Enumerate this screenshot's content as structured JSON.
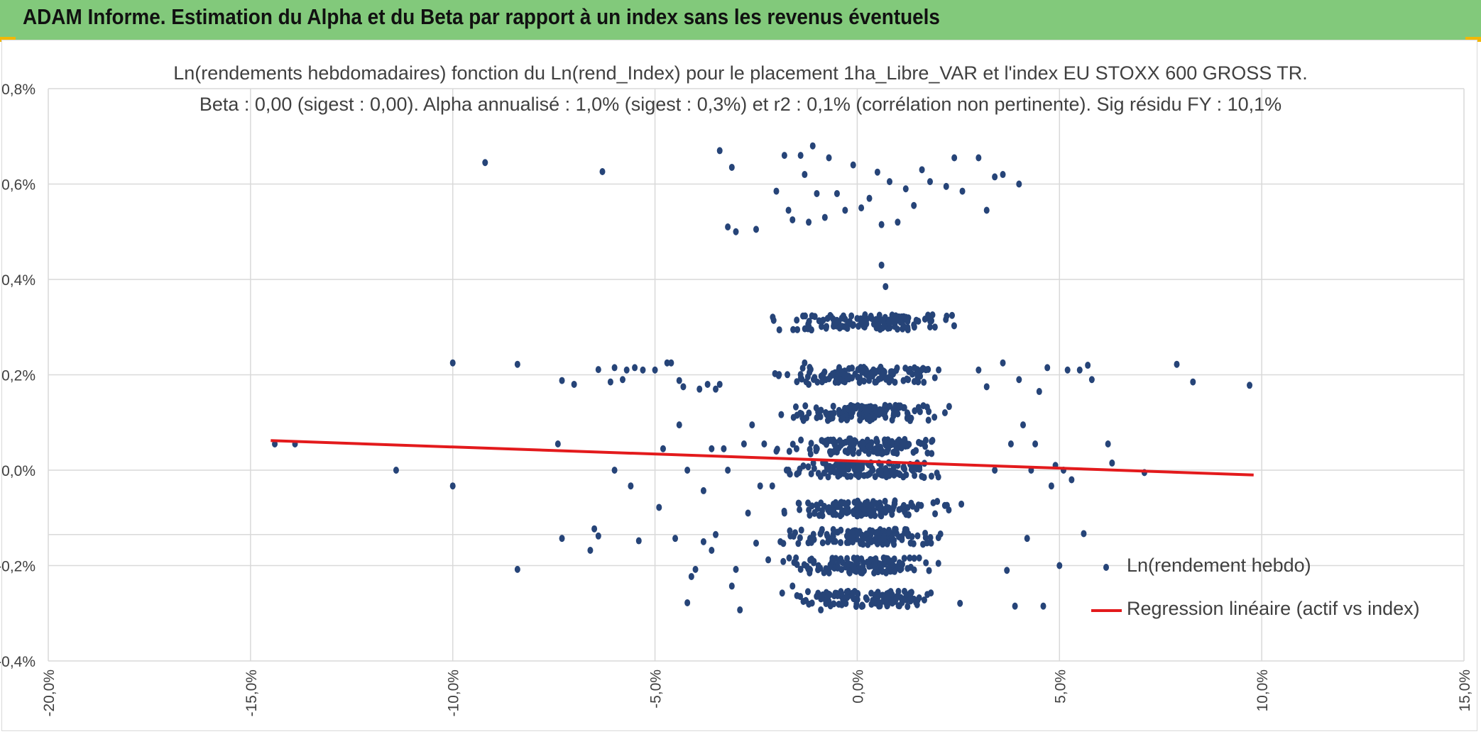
{
  "header": {
    "title": "ADAM Informe. Estimation du Alpha et du Beta par rapport à un index sans les revenus éventuels"
  },
  "colors": {
    "banner": "#82c97b",
    "accent": "#f2b705",
    "points": "#264478",
    "regression": "#e31a1c",
    "grid": "#d9d9d9",
    "text": "#404040"
  },
  "chart_data": {
    "type": "scatter",
    "title_line1": "Ln(rendements hebdomadaires) fonction du Ln(rend_Index) pour le placement 1ha_Libre_VAR et l'index EU STOXX 600 GROSS TR.",
    "title_line2": "Beta : 0,00 (sigest : 0,00). Alpha annualisé : 1,0% (sigest : 0,3%) et r2 : 0,1% (corrélation non pertinente). Sig résidu FY : 10,1%",
    "xlim": [
      -0.2,
      0.15
    ],
    "ylim": [
      -0.004,
      0.008
    ],
    "x_ticks": [
      -0.2,
      -0.15,
      -0.1,
      -0.05,
      0.0,
      0.05,
      0.1,
      0.15
    ],
    "x_tick_labels": [
      "-20,0%",
      "-15,0%",
      "-10,0%",
      "-5,0%",
      "0,0%",
      "5,0%",
      "10,0%",
      "15,0%"
    ],
    "y_ticks": [
      -0.004,
      -0.002,
      0.0,
      0.002,
      0.004,
      0.006,
      0.008
    ],
    "y_tick_labels": [
      "-0,4%",
      "-0,2%",
      "0,0%",
      "0,2%",
      "0,4%",
      "0,6%",
      "0,8%"
    ],
    "grid": true,
    "legend_position": "right",
    "series": [
      {
        "name": "Ln(rendement hebdo)",
        "kind": "scatter",
        "color": "#264478",
        "points": [
          [
            -0.144,
            0.00055
          ],
          [
            -0.139,
            0.00055
          ],
          [
            -0.114,
            0.0
          ],
          [
            -0.1,
            0.00225
          ],
          [
            -0.1,
            -0.00033
          ],
          [
            -0.092,
            0.00645
          ],
          [
            -0.084,
            0.00222
          ],
          [
            -0.084,
            -0.00208
          ],
          [
            -0.074,
            0.00055
          ],
          [
            -0.073,
            0.00188
          ],
          [
            -0.073,
            -0.00143
          ],
          [
            -0.07,
            0.0018
          ],
          [
            -0.066,
            -0.00168
          ],
          [
            -0.065,
            -0.00123
          ],
          [
            -0.064,
            0.00211
          ],
          [
            -0.064,
            -0.00138
          ],
          [
            -0.063,
            0.00626
          ],
          [
            -0.061,
            0.00185
          ],
          [
            -0.06,
            0.00215
          ],
          [
            -0.06,
            0.0
          ],
          [
            -0.058,
            0.0019
          ],
          [
            -0.057,
            0.0021
          ],
          [
            -0.056,
            -0.00033
          ],
          [
            -0.055,
            0.00215
          ],
          [
            -0.054,
            -0.00148
          ],
          [
            -0.053,
            0.0021
          ],
          [
            -0.05,
            0.0021
          ],
          [
            -0.049,
            -0.00078
          ],
          [
            -0.048,
            0.00045
          ],
          [
            -0.047,
            0.00225
          ],
          [
            -0.046,
            0.00225
          ],
          [
            -0.045,
            -0.00143
          ],
          [
            -0.044,
            0.00188
          ],
          [
            -0.044,
            0.00095
          ],
          [
            -0.043,
            0.00175
          ],
          [
            -0.042,
            0.0
          ],
          [
            -0.042,
            -0.00278
          ],
          [
            -0.041,
            -0.00223
          ],
          [
            -0.04,
            -0.00208
          ],
          [
            -0.039,
            0.0017
          ],
          [
            -0.038,
            -0.0015
          ],
          [
            -0.038,
            -0.00043
          ],
          [
            -0.037,
            0.0018
          ],
          [
            -0.036,
            0.00045
          ],
          [
            -0.036,
            -0.00168
          ],
          [
            -0.035,
            0.0017
          ],
          [
            -0.035,
            -0.00135
          ],
          [
            -0.034,
            0.0018
          ],
          [
            -0.033,
            0.00045
          ],
          [
            -0.032,
            0.0
          ],
          [
            -0.031,
            -0.00243
          ],
          [
            -0.03,
            -0.00208
          ],
          [
            -0.029,
            -0.00293
          ],
          [
            -0.028,
            0.00055
          ],
          [
            -0.027,
            -0.0009
          ],
          [
            -0.026,
            0.00095
          ],
          [
            -0.025,
            -0.00153
          ],
          [
            -0.024,
            -0.00033
          ],
          [
            -0.023,
            0.00055
          ],
          [
            -0.022,
            -0.00188
          ],
          [
            -0.021,
            -0.00033
          ],
          [
            -0.02,
            0.0004
          ],
          [
            -0.019,
            -0.0015
          ],
          [
            -0.018,
            -0.0009
          ],
          [
            -0.017,
            0.0
          ],
          [
            -0.016,
            -0.00243
          ],
          [
            -0.015,
            0.00045
          ],
          [
            -0.014,
            -0.00208
          ],
          [
            -0.013,
            0.00225
          ],
          [
            -0.012,
            0.0018
          ],
          [
            -0.011,
            -0.00143
          ],
          [
            -0.01,
            0.0011
          ],
          [
            -0.009,
            -0.00293
          ],
          [
            -0.034,
            0.0067
          ],
          [
            -0.032,
            0.0051
          ],
          [
            -0.031,
            0.00635
          ],
          [
            -0.03,
            0.005
          ],
          [
            -0.025,
            0.00505
          ],
          [
            -0.02,
            0.00585
          ],
          [
            -0.018,
            0.0066
          ],
          [
            -0.017,
            0.00545
          ],
          [
            -0.016,
            0.00525
          ],
          [
            -0.014,
            0.0066
          ],
          [
            -0.013,
            0.0062
          ],
          [
            -0.012,
            0.0052
          ],
          [
            -0.011,
            0.0068
          ],
          [
            -0.01,
            0.0058
          ],
          [
            -0.008,
            0.0053
          ],
          [
            -0.007,
            0.00655
          ],
          [
            -0.005,
            0.0058
          ],
          [
            -0.003,
            0.00545
          ],
          [
            -0.001,
            0.0064
          ],
          [
            0.001,
            0.0055
          ],
          [
            0.003,
            0.0057
          ],
          [
            0.005,
            0.00625
          ],
          [
            0.006,
            0.00515
          ],
          [
            0.008,
            0.00605
          ],
          [
            0.01,
            0.0052
          ],
          [
            0.012,
            0.0059
          ],
          [
            0.014,
            0.00555
          ],
          [
            0.016,
            0.0063
          ],
          [
            0.018,
            0.00605
          ],
          [
            0.022,
            0.00595
          ],
          [
            0.024,
            0.00655
          ],
          [
            0.026,
            0.00585
          ],
          [
            0.03,
            0.00655
          ],
          [
            0.032,
            0.00545
          ],
          [
            0.034,
            0.00615
          ],
          [
            0.036,
            0.0062
          ],
          [
            0.04,
            0.006
          ],
          [
            0.006,
            0.0043
          ],
          [
            0.007,
            0.00385
          ],
          [
            0.03,
            0.0021
          ],
          [
            0.032,
            0.00175
          ],
          [
            0.034,
            0.0
          ],
          [
            0.036,
            0.00225
          ],
          [
            0.037,
            -0.0021
          ],
          [
            0.038,
            0.00055
          ],
          [
            0.039,
            -0.00285
          ],
          [
            0.04,
            0.0019
          ],
          [
            0.041,
            0.00095
          ],
          [
            0.042,
            -0.00143
          ],
          [
            0.043,
            0.0
          ],
          [
            0.044,
            0.00055
          ],
          [
            0.045,
            0.00165
          ],
          [
            0.046,
            -0.00285
          ],
          [
            0.047,
            0.00215
          ],
          [
            0.048,
            -0.00033
          ],
          [
            0.049,
            0.0001
          ],
          [
            0.05,
            -0.002
          ],
          [
            0.051,
            0.0
          ],
          [
            0.052,
            0.0021
          ],
          [
            0.053,
            -0.0002
          ],
          [
            0.055,
            0.0021
          ],
          [
            0.056,
            -0.00133
          ],
          [
            0.057,
            0.0022
          ],
          [
            0.058,
            0.0019
          ],
          [
            0.062,
            0.00055
          ],
          [
            0.063,
            0.00015
          ],
          [
            0.071,
            -5e-05
          ],
          [
            0.079,
            0.00222
          ],
          [
            0.083,
            0.00185
          ],
          [
            0.097,
            0.00178
          ]
        ],
        "dense_clusters": [
          {
            "x_center": 0.002,
            "x_spread": 0.026,
            "bands": [
              0.0031,
              0.002,
              0.0012,
              0.0005,
              0.0,
              -0.0008,
              -0.0014,
              -0.002,
              -0.0027
            ]
          }
        ]
      },
      {
        "name": "Regression linéaire (actif vs index)",
        "kind": "line",
        "color": "#e31a1c",
        "x": [
          -0.145,
          0.098
        ],
        "y": [
          0.00062,
          -0.0001
        ]
      }
    ]
  }
}
